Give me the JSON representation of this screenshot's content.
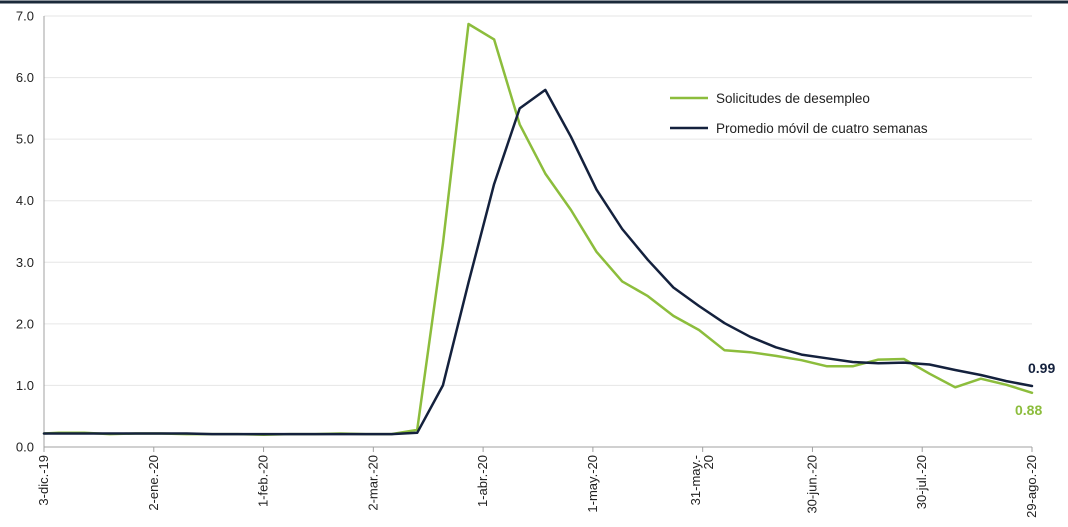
{
  "colors": {
    "top_border": "#1b2a3a",
    "axis": "#a0a0a0",
    "grid": "#e6e6e6",
    "series_green": "#8cbd3c",
    "series_navy": "#14213d"
  },
  "chart_data": {
    "type": "line",
    "ylim": [
      0,
      7
    ],
    "y_ticks": [
      "0.0",
      "1.0",
      "2.0",
      "3.0",
      "4.0",
      "5.0",
      "6.0",
      "7.0"
    ],
    "y_tick_values": [
      0,
      1,
      2,
      3,
      4,
      5,
      6,
      7
    ],
    "x_range": [
      "2019-12-03",
      "2020-08-29"
    ],
    "x_ticks": [
      {
        "date": "2019-12-03",
        "lines": [
          "3-dic.-19"
        ]
      },
      {
        "date": "2020-01-02",
        "lines": [
          "2-ene.-20"
        ]
      },
      {
        "date": "2020-02-01",
        "lines": [
          "1-feb.-20"
        ]
      },
      {
        "date": "2020-03-02",
        "lines": [
          "2-mar.-20"
        ]
      },
      {
        "date": "2020-04-01",
        "lines": [
          "1-abr.-20"
        ]
      },
      {
        "date": "2020-05-01",
        "lines": [
          "1-may.-20"
        ]
      },
      {
        "date": "2020-05-31",
        "lines": [
          "31-may.-",
          "20"
        ]
      },
      {
        "date": "2020-06-30",
        "lines": [
          "30-jun.-20"
        ]
      },
      {
        "date": "2020-07-30",
        "lines": [
          "30-jul.-20"
        ]
      },
      {
        "date": "2020-08-29",
        "lines": [
          "29-ago.-20"
        ]
      }
    ],
    "grid": true,
    "legend_position": "top-right",
    "series": [
      {
        "name": "Solicitudes de desempleo",
        "color": "#8cbd3c",
        "end_label": "0.88",
        "points": [
          [
            "2019-12-03",
            0.22
          ],
          [
            "2019-12-07",
            0.23
          ],
          [
            "2019-12-14",
            0.23
          ],
          [
            "2019-12-21",
            0.21
          ],
          [
            "2019-12-28",
            0.22
          ],
          [
            "2020-01-04",
            0.22
          ],
          [
            "2020-01-11",
            0.21
          ],
          [
            "2020-01-18",
            0.21
          ],
          [
            "2020-01-25",
            0.21
          ],
          [
            "2020-02-01",
            0.2
          ],
          [
            "2020-02-08",
            0.21
          ],
          [
            "2020-02-15",
            0.21
          ],
          [
            "2020-02-22",
            0.22
          ],
          [
            "2020-02-29",
            0.21
          ],
          [
            "2020-03-07",
            0.21
          ],
          [
            "2020-03-14",
            0.28
          ],
          [
            "2020-03-21",
            3.3
          ],
          [
            "2020-03-28",
            6.87
          ],
          [
            "2020-04-04",
            6.62
          ],
          [
            "2020-04-11",
            5.24
          ],
          [
            "2020-04-18",
            4.44
          ],
          [
            "2020-04-25",
            3.85
          ],
          [
            "2020-05-02",
            3.17
          ],
          [
            "2020-05-09",
            2.69
          ],
          [
            "2020-05-16",
            2.45
          ],
          [
            "2020-05-23",
            2.13
          ],
          [
            "2020-05-30",
            1.9
          ],
          [
            "2020-06-06",
            1.57
          ],
          [
            "2020-06-13",
            1.54
          ],
          [
            "2020-06-20",
            1.48
          ],
          [
            "2020-06-27",
            1.41
          ],
          [
            "2020-07-04",
            1.31
          ],
          [
            "2020-07-11",
            1.31
          ],
          [
            "2020-07-18",
            1.42
          ],
          [
            "2020-07-25",
            1.43
          ],
          [
            "2020-08-01",
            1.19
          ],
          [
            "2020-08-08",
            0.97
          ],
          [
            "2020-08-15",
            1.11
          ],
          [
            "2020-08-22",
            1.01
          ],
          [
            "2020-08-29",
            0.88
          ]
        ]
      },
      {
        "name": "Promedio móvil de cuatro semanas",
        "color": "#14213d",
        "end_label": "0.99",
        "points": [
          [
            "2019-12-03",
            0.22
          ],
          [
            "2019-12-07",
            0.22
          ],
          [
            "2019-12-14",
            0.22
          ],
          [
            "2019-12-21",
            0.22
          ],
          [
            "2019-12-28",
            0.22
          ],
          [
            "2020-01-04",
            0.22
          ],
          [
            "2020-01-11",
            0.22
          ],
          [
            "2020-01-18",
            0.21
          ],
          [
            "2020-01-25",
            0.21
          ],
          [
            "2020-02-01",
            0.21
          ],
          [
            "2020-02-08",
            0.21
          ],
          [
            "2020-02-15",
            0.21
          ],
          [
            "2020-02-22",
            0.21
          ],
          [
            "2020-02-29",
            0.21
          ],
          [
            "2020-03-07",
            0.21
          ],
          [
            "2020-03-14",
            0.23
          ],
          [
            "2020-03-21",
            1.0
          ],
          [
            "2020-03-28",
            2.67
          ],
          [
            "2020-04-04",
            4.27
          ],
          [
            "2020-04-11",
            5.5
          ],
          [
            "2020-04-18",
            5.8
          ],
          [
            "2020-04-25",
            5.04
          ],
          [
            "2020-05-02",
            4.18
          ],
          [
            "2020-05-09",
            3.54
          ],
          [
            "2020-05-16",
            3.04
          ],
          [
            "2020-05-23",
            2.59
          ],
          [
            "2020-05-30",
            2.29
          ],
          [
            "2020-06-06",
            2.01
          ],
          [
            "2020-06-13",
            1.79
          ],
          [
            "2020-06-20",
            1.62
          ],
          [
            "2020-06-27",
            1.5
          ],
          [
            "2020-07-04",
            1.44
          ],
          [
            "2020-07-11",
            1.38
          ],
          [
            "2020-07-18",
            1.36
          ],
          [
            "2020-07-25",
            1.37
          ],
          [
            "2020-08-01",
            1.34
          ],
          [
            "2020-08-08",
            1.25
          ],
          [
            "2020-08-15",
            1.17
          ],
          [
            "2020-08-22",
            1.07
          ],
          [
            "2020-08-29",
            0.99
          ]
        ]
      }
    ]
  }
}
